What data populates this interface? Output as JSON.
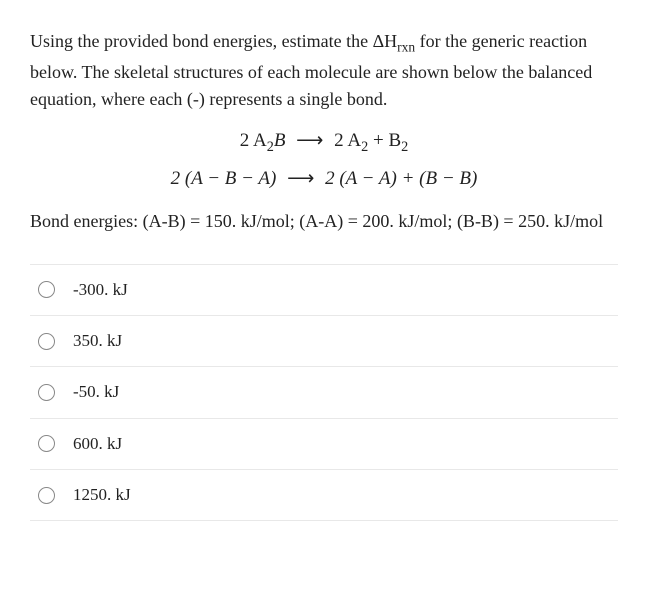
{
  "question": {
    "intro": "Using the provided bond energies, estimate the ΔH",
    "sub1": "rxn",
    "intro2": " for the generic reaction below.  The skeletal structures of each molecule are shown below the balanced equation, where each (-) represents a single bond."
  },
  "equations": {
    "line1_left": "2 A",
    "line1_left_sub": "2",
    "line1_left2": "B",
    "line1_arrow": "⟶",
    "line1_right": "2 A",
    "line1_right_sub": "2",
    "line1_right2": " + B",
    "line1_right_sub2": "2",
    "line2_left": "2 (A − B − A)",
    "line2_arrow": "⟶",
    "line2_right": "2 (A − A) + (B − B)"
  },
  "bond_energies": {
    "label": "Bond energies: (A-B) = 150. kJ/mol; (A-A) = 200. kJ/mol; (B-B) = 250. kJ/mol"
  },
  "options": [
    {
      "label": "-300. kJ"
    },
    {
      "label": "350. kJ"
    },
    {
      "label": "-50. kJ"
    },
    {
      "label": "600. kJ"
    },
    {
      "label": "1250. kJ"
    }
  ],
  "colors": {
    "text": "#222222",
    "border": "#e8e8e8",
    "radio_border": "#888888",
    "background": "#ffffff"
  }
}
